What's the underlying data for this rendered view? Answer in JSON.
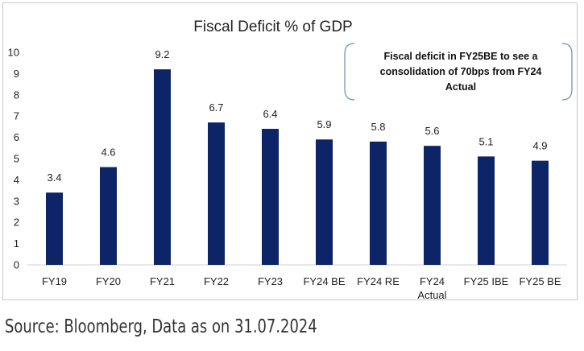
{
  "chart_data": {
    "type": "bar",
    "title": "Fiscal Deficit % of GDP",
    "categories": [
      "FY19",
      "FY20",
      "FY21",
      "FY22",
      "FY23",
      "FY24 BE",
      "FY24 RE",
      "FY24\nActual",
      "FY25 IBE",
      "FY25 BE"
    ],
    "values": [
      3.4,
      4.6,
      9.2,
      6.7,
      6.4,
      5.9,
      5.8,
      5.6,
      5.1,
      4.9
    ],
    "data_labels": [
      "3.4",
      "4.6",
      "9.2",
      "6.7",
      "6.4",
      "5.9",
      "5.8",
      "5.6",
      "5.1",
      "4.9"
    ],
    "ylim": [
      0,
      10
    ],
    "yticks": [
      0,
      1,
      2,
      3,
      4,
      5,
      6,
      7,
      8,
      9,
      10
    ],
    "xlabel": "",
    "ylabel": "",
    "grid": false,
    "bar_color": "#0d2466",
    "annotation": "Fiscal deficit in FY25BE to see a consolidation of 70bps from FY24 Actual"
  },
  "footer": {
    "source": "Source: Bloomberg, Data as on 31.07.2024"
  },
  "colors": {
    "bar": "#0d2466",
    "frame_border": "#c8c8c8",
    "callout_border": "#6a8cae"
  }
}
